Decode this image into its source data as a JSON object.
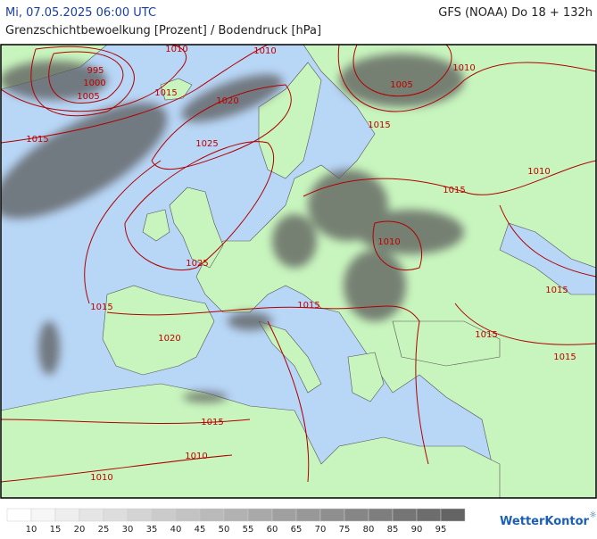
{
  "header": {
    "datetime": "Mi, 07.05.2025 06:00 UTC",
    "model": "GFS (NOAA) Do 18 + 132h",
    "subtitle": "Grenzschichtbewoelkung [Prozent] / Bodendruck [hPa]"
  },
  "map": {
    "isobar_labels": [
      "1010",
      "1010",
      "995",
      "1000",
      "1005",
      "1015",
      "1020",
      "1015",
      "1025",
      "1010",
      "1005",
      "1015",
      "1010",
      "1015",
      "1010",
      "1025",
      "1015",
      "1015",
      "1015",
      "1015",
      "1015",
      "1020",
      "1015",
      "1010",
      "1010"
    ]
  },
  "legend": {
    "labels": [
      "10",
      "15",
      "20",
      "25",
      "30",
      "35",
      "40",
      "45",
      "50",
      "55",
      "60",
      "65",
      "70",
      "75",
      "80",
      "85",
      "90",
      "95"
    ]
  },
  "logo": "WetterKontor"
}
